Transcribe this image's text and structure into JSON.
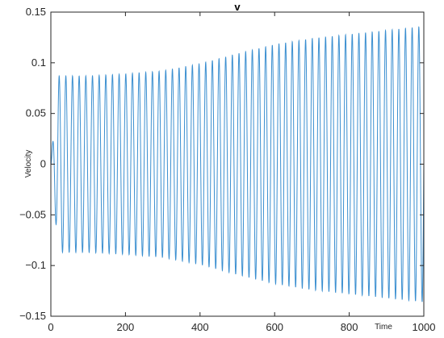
{
  "chart_data": {
    "type": "line",
    "title": "v",
    "xlabel": "Time",
    "ylabel": "Velocity",
    "xlim": [
      0,
      1000
    ],
    "ylim": [
      -0.15,
      0.15
    ],
    "x_ticks": [
      "0",
      "200",
      "400",
      "600",
      "800",
      "1000"
    ],
    "y_ticks": [
      "0.15",
      "0.1",
      "0.05",
      "0",
      "−0.05",
      "−0.1",
      "−0.15"
    ],
    "grid": false,
    "series": [
      {
        "color": "#3b8fd0",
        "oscillation": {
          "cycles": 56,
          "envelope_t": [
            0,
            20,
            100,
            200,
            300,
            400,
            500,
            600,
            700,
            800,
            900,
            1000
          ],
          "envelope_amp": [
            0.0,
            0.087,
            0.087,
            0.089,
            0.092,
            0.099,
            0.109,
            0.118,
            0.124,
            0.128,
            0.132,
            0.136
          ]
        }
      }
    ]
  }
}
